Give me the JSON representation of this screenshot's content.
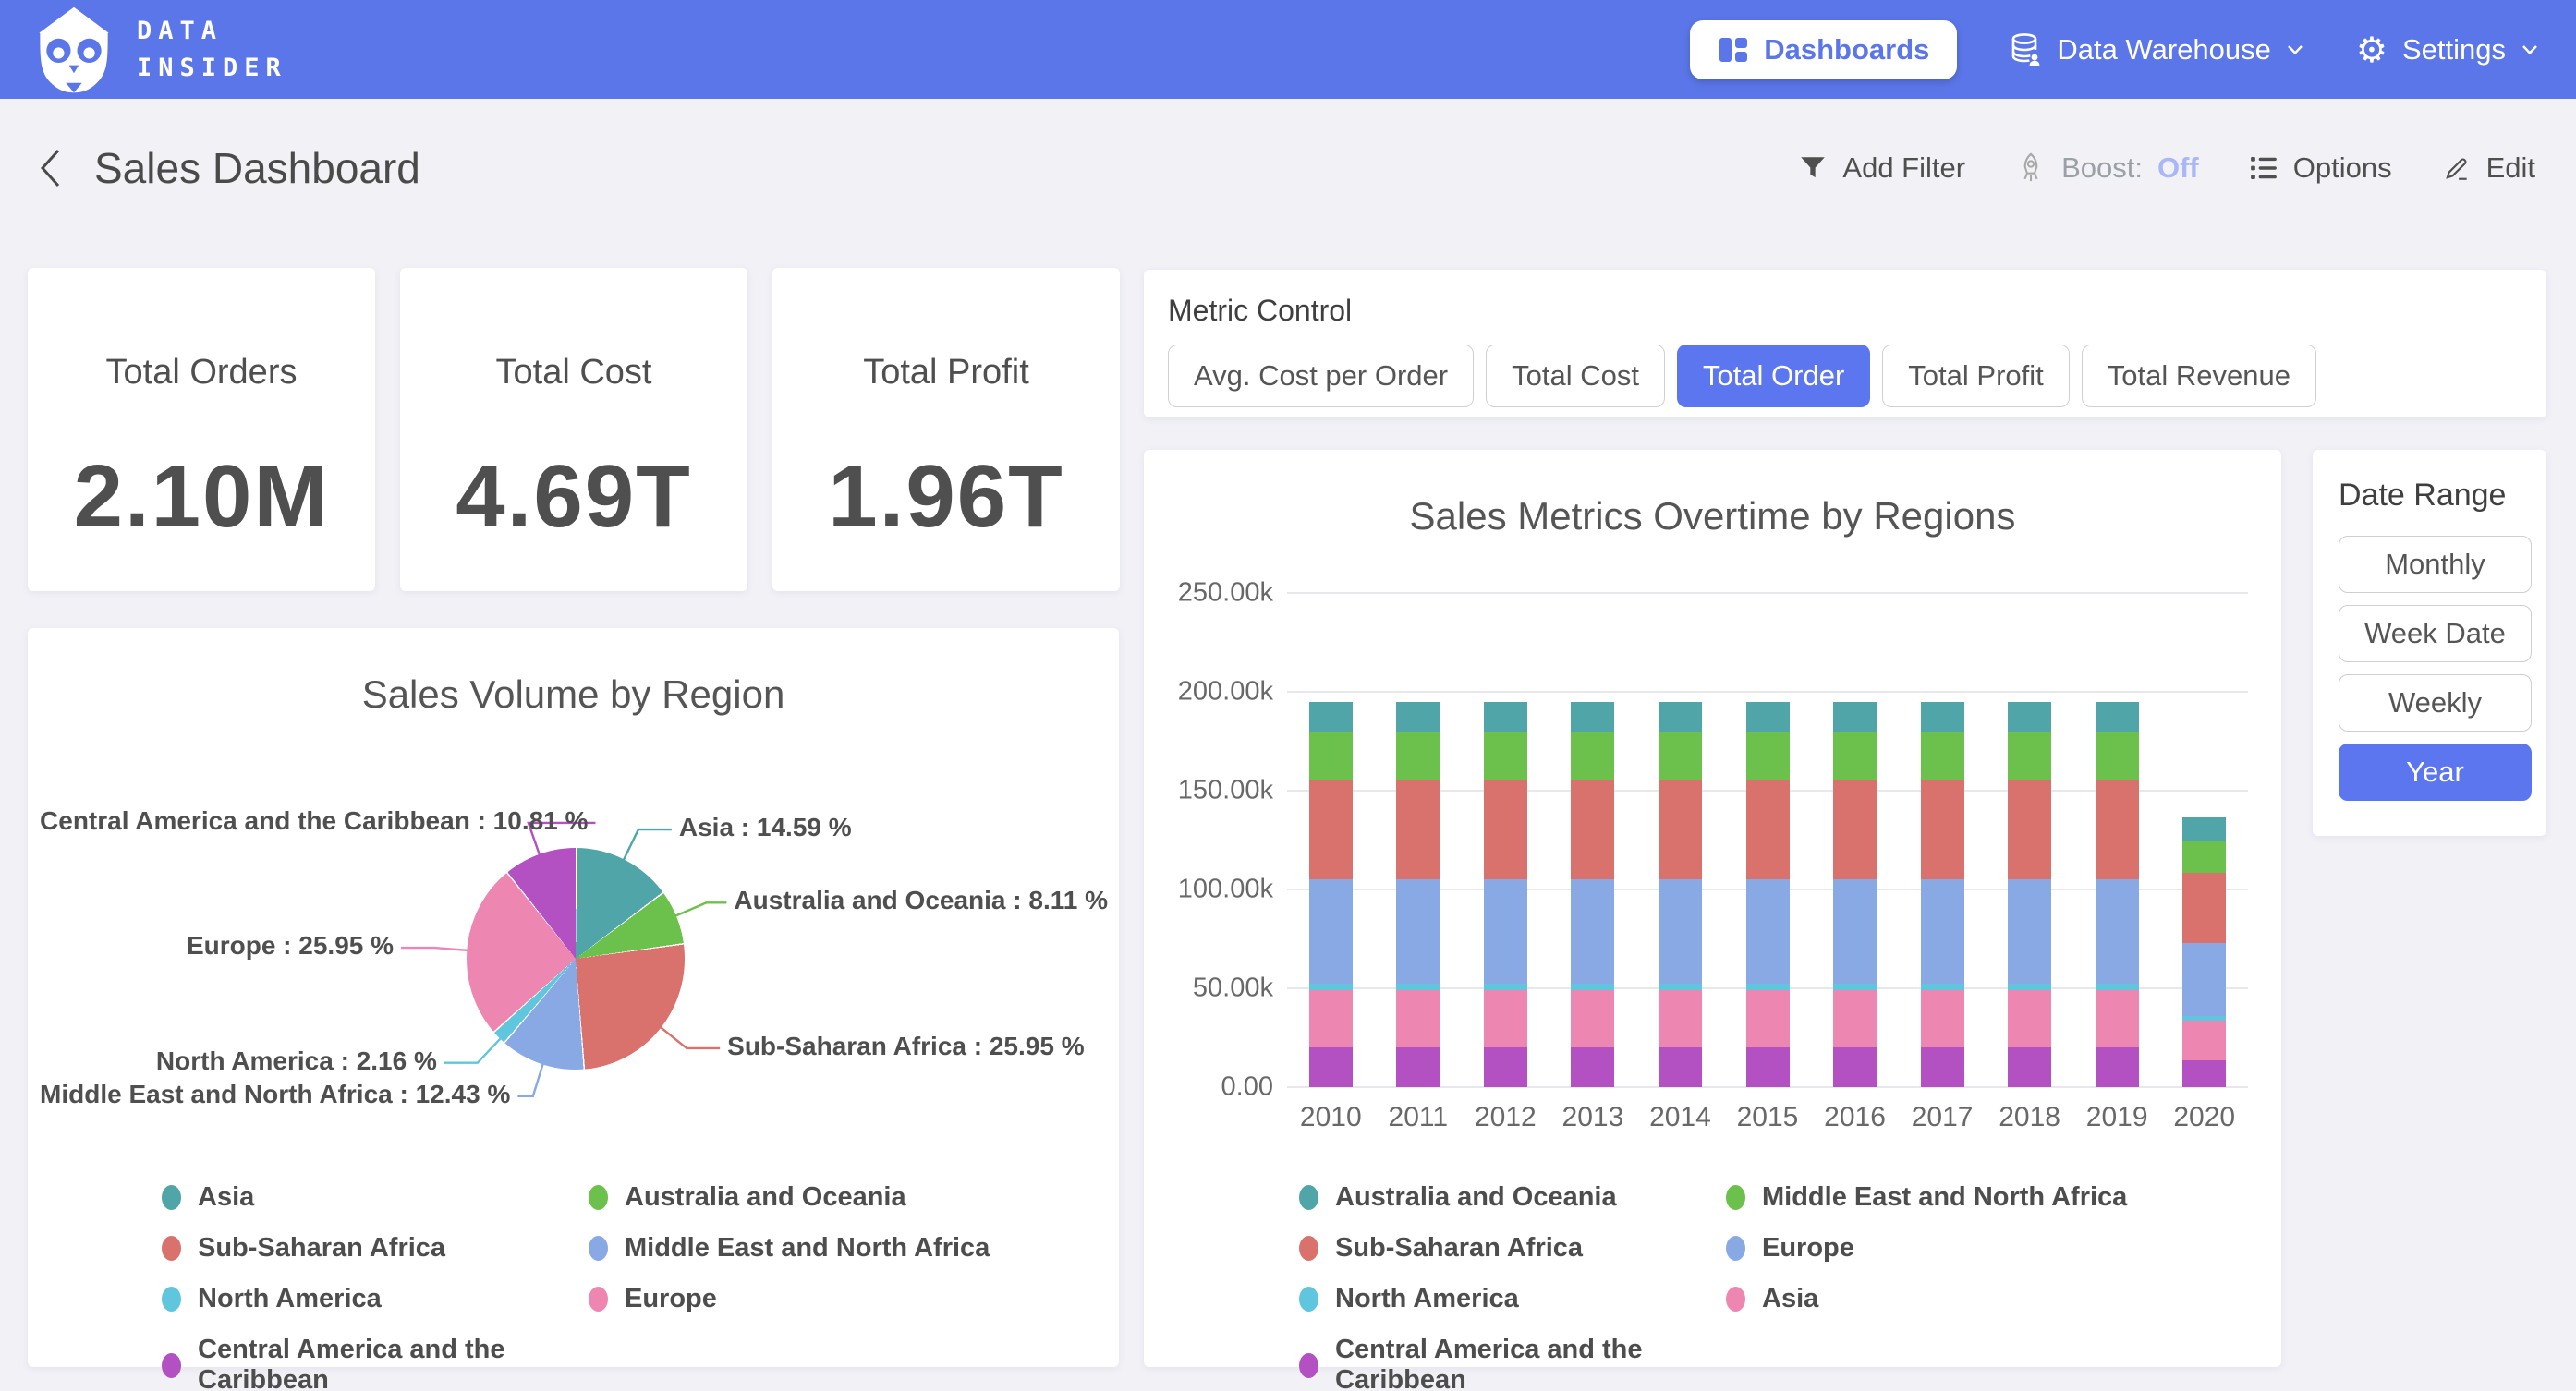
{
  "nav": {
    "brand_line1": "DATA",
    "brand_line2": "INSIDER",
    "items": [
      {
        "label": "Dashboards",
        "active": true
      },
      {
        "label": "Data Warehouse",
        "active": false
      },
      {
        "label": "Settings",
        "active": false
      }
    ]
  },
  "header": {
    "title": "Sales Dashboard",
    "actions": {
      "add_filter": "Add Filter",
      "boost_label": "Boost:",
      "boost_state": "Off",
      "options": "Options",
      "edit": "Edit"
    }
  },
  "kpis": [
    {
      "label": "Total Orders",
      "value": "2.10M"
    },
    {
      "label": "Total Cost",
      "value": "4.69T"
    },
    {
      "label": "Total Profit",
      "value": "1.96T"
    }
  ],
  "metric_control": {
    "title": "Metric Control",
    "options": [
      {
        "label": "Avg. Cost per Order",
        "selected": false
      },
      {
        "label": "Total Cost",
        "selected": false
      },
      {
        "label": "Total Order",
        "selected": true
      },
      {
        "label": "Total Profit",
        "selected": false
      },
      {
        "label": "Total Revenue",
        "selected": false
      }
    ]
  },
  "date_range": {
    "title": "Date Range",
    "options": [
      {
        "label": "Monthly",
        "selected": false
      },
      {
        "label": "Week Date",
        "selected": false
      },
      {
        "label": "Weekly",
        "selected": false
      },
      {
        "label": "Year",
        "selected": true
      }
    ]
  },
  "colors": {
    "accent_blue": "#5b76e8",
    "background": "#f1f1f6",
    "panel": "#ffffff",
    "grid": "#e8e8ec",
    "teal": "#4fa5a8",
    "green": "#6cc04c",
    "red": "#d9726c",
    "cornflower": "#88a9e4",
    "cyan": "#5fc6de",
    "pink": "#ee86b2",
    "purple": "#b350c2"
  },
  "chart_data": [
    {
      "type": "pie",
      "title": "Sales Volume by Region",
      "start_angle": "top-clockwise",
      "slices": [
        {
          "name": "Asia",
          "value": 14.59,
          "color": "#4fa5a8"
        },
        {
          "name": "Australia and Oceania",
          "value": 8.11,
          "color": "#6cc04c"
        },
        {
          "name": "Sub-Saharan Africa",
          "value": 25.95,
          "color": "#d9726c"
        },
        {
          "name": "Middle East and North Africa",
          "value": 12.43,
          "color": "#88a9e4"
        },
        {
          "name": "North America",
          "value": 2.16,
          "color": "#5fc6de"
        },
        {
          "name": "Europe",
          "value": 25.95,
          "color": "#ee86b2"
        },
        {
          "name": "Central America and the Caribbean",
          "value": 10.81,
          "color": "#b350c2"
        }
      ],
      "label_format": "{name} : {value} %",
      "legend_order": [
        "Asia",
        "Australia and Oceania",
        "Sub-Saharan Africa",
        "Middle East and North Africa",
        "North America",
        "Europe",
        "Central America and the Caribbean"
      ],
      "legend_position": "bottom-two-columns"
    },
    {
      "type": "bar",
      "stacked": true,
      "title": "Sales Metrics Overtime by Regions",
      "categories": [
        "2010",
        "2011",
        "2012",
        "2013",
        "2014",
        "2015",
        "2016",
        "2017",
        "2018",
        "2019",
        "2020"
      ],
      "series": [
        {
          "name": "Central America and the Caribbean",
          "color": "#b350c2",
          "values": [
            20000,
            20000,
            20000,
            20000,
            20000,
            20000,
            20000,
            20000,
            20000,
            20000,
            13500
          ]
        },
        {
          "name": "Asia",
          "color": "#ee86b2",
          "values": [
            29000,
            29000,
            29000,
            29000,
            29000,
            29000,
            29000,
            29000,
            29000,
            29000,
            20000
          ]
        },
        {
          "name": "North America",
          "color": "#5fc6de",
          "values": [
            3500,
            3500,
            3500,
            3500,
            3500,
            3500,
            3500,
            3500,
            3500,
            3500,
            2500
          ]
        },
        {
          "name": "Europe",
          "color": "#88a9e4",
          "values": [
            52500,
            52500,
            52500,
            52500,
            52500,
            52500,
            52500,
            52500,
            52500,
            52500,
            37000
          ]
        },
        {
          "name": "Sub-Saharan Africa",
          "color": "#d9726c",
          "values": [
            50000,
            50000,
            50000,
            50000,
            50000,
            50000,
            50000,
            50000,
            50000,
            50000,
            35500
          ]
        },
        {
          "name": "Middle East and North Africa",
          "color": "#6cc04c",
          "values": [
            25000,
            25000,
            25000,
            25000,
            25000,
            25000,
            25000,
            25000,
            25000,
            25000,
            16500
          ]
        },
        {
          "name": "Australia and Oceania",
          "color": "#4fa5a8",
          "values": [
            15000,
            15000,
            15000,
            15000,
            15000,
            15000,
            15000,
            15000,
            15000,
            15000,
            11500
          ]
        }
      ],
      "ylim": [
        0,
        250000
      ],
      "y_ticks": [
        "0.00",
        "50.00k",
        "100.00k",
        "150.00k",
        "200.00k",
        "250.00k"
      ],
      "grid": true,
      "legend_order": [
        "Australia and Oceania",
        "Middle East and North Africa",
        "Sub-Saharan Africa",
        "Europe",
        "North America",
        "Asia",
        "Central America and the Caribbean"
      ],
      "legend_position": "bottom-two-columns"
    }
  ]
}
